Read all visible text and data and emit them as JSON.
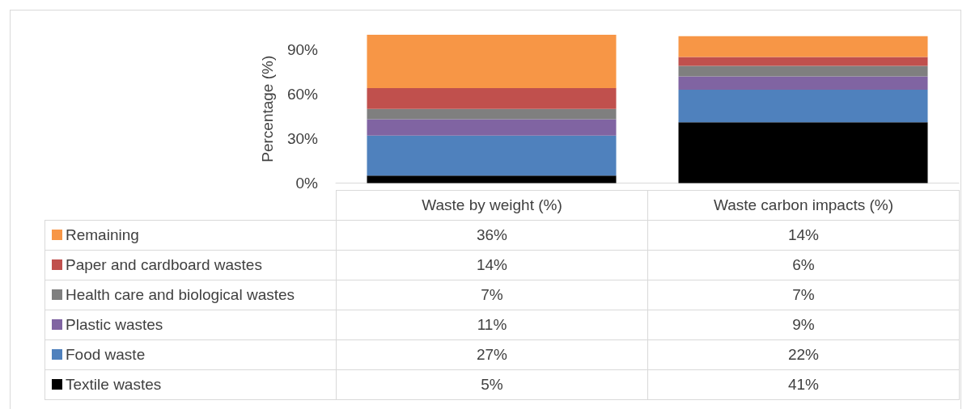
{
  "chart_data": {
    "type": "bar",
    "stacked": true,
    "ylabel": "Percentage (%)",
    "categories": [
      "Waste by weight (%)",
      "Waste carbon impacts (%)"
    ],
    "ylim": [
      0,
      100
    ],
    "yticks": [
      {
        "value": 0,
        "label": "0%"
      },
      {
        "value": 30,
        "label": "30%"
      },
      {
        "value": 60,
        "label": "60%"
      },
      {
        "value": 90,
        "label": "90%"
      }
    ],
    "grid": false,
    "legend": "bottom",
    "series": [
      {
        "name": "Textile wastes",
        "color": "#000000",
        "values": [
          5,
          41
        ],
        "value_labels": [
          "5%",
          "41%"
        ]
      },
      {
        "name": "Food waste",
        "color": "#4f81bd",
        "values": [
          27,
          22
        ],
        "value_labels": [
          "27%",
          "22%"
        ]
      },
      {
        "name": "Plastic wastes",
        "color": "#8064a2",
        "values": [
          11,
          9
        ],
        "value_labels": [
          "11%",
          "9%"
        ]
      },
      {
        "name": "Health care and biological wastes",
        "color": "#7f7f7f",
        "values": [
          7,
          7
        ],
        "value_labels": [
          "7%",
          "7%"
        ]
      },
      {
        "name": "Paper and cardboard wastes",
        "color": "#c0504d",
        "values": [
          14,
          6
        ],
        "value_labels": [
          "14%",
          "6%"
        ]
      },
      {
        "name": "Remaining",
        "color": "#f79646",
        "values": [
          36,
          14
        ],
        "value_labels": [
          "36%",
          "14%"
        ]
      }
    ]
  }
}
